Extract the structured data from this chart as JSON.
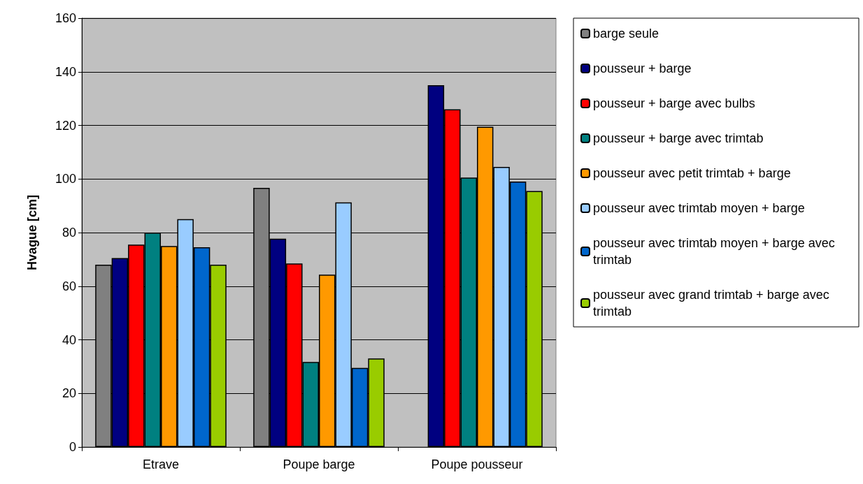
{
  "chart_data": {
    "type": "bar",
    "ylabel": "Hvague [cm]",
    "categories": [
      "Etrave",
      "Poupe barge",
      "Poupe pousseur"
    ],
    "series": [
      {
        "name": "barge seule",
        "color": "#808080",
        "values": [
          68,
          96.7,
          null
        ]
      },
      {
        "name": "pousseur + barge",
        "color": "#000080",
        "values": [
          70.5,
          77.7,
          135
        ]
      },
      {
        "name": "pousseur + barge avec bulbs",
        "color": "#ff0000",
        "values": [
          75.5,
          68.5,
          126
        ]
      },
      {
        "name": "pousseur + barge avec trimtab",
        "color": "#008080",
        "values": [
          80,
          31.7,
          100.5
        ]
      },
      {
        "name": "pousseur avec petit trimtab + barge",
        "color": "#ff9900",
        "values": [
          75,
          64.3,
          119.5
        ]
      },
      {
        "name": "pousseur avec trimtab moyen + barge",
        "color": "#99ccff",
        "values": [
          85,
          91.3,
          104.5
        ]
      },
      {
        "name": "pousseur avec trimtab moyen + barge avec trimtab",
        "color": "#0066cc",
        "values": [
          74.5,
          29.5,
          99
        ]
      },
      {
        "name": "pousseur avec grand trimtab + barge avec trimtab",
        "color": "#99cc00",
        "values": [
          68,
          33,
          95.5
        ]
      }
    ],
    "ylim": [
      0,
      160
    ],
    "yticks": [
      0,
      20,
      40,
      60,
      80,
      100,
      120,
      140,
      160
    ],
    "grid": "y",
    "legend": "right"
  }
}
